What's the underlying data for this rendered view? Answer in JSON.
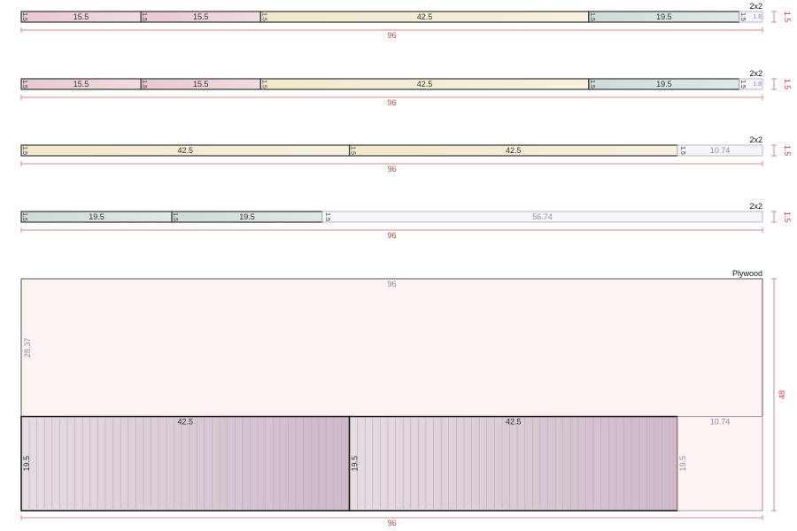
{
  "stock_length": "96",
  "boards": [
    {
      "material": "2x2",
      "thickness": "1.5",
      "length": "96",
      "pieces": [
        {
          "label": "15.5",
          "thickness": "1.5",
          "color": "#e8c9cf"
        },
        {
          "label": "15.5",
          "thickness": "1.5",
          "color": "#e8c9cf"
        },
        {
          "label": "42.5",
          "thickness": "1.5",
          "color": "#f1e9cc"
        },
        {
          "label": "19.5",
          "thickness": "1.5",
          "color": "#cfdcd6"
        }
      ],
      "offcut": {
        "label": "1.8",
        "thickness": "1.5"
      }
    },
    {
      "material": "2x2",
      "thickness": "1.5",
      "length": "96",
      "pieces": [
        {
          "label": "15.5",
          "thickness": "1.5",
          "color": "#e8c9cf"
        },
        {
          "label": "15.5",
          "thickness": "1.5",
          "color": "#e8c9cf"
        },
        {
          "label": "42.5",
          "thickness": "1.5",
          "color": "#f1e9cc"
        },
        {
          "label": "19.5",
          "thickness": "1.5",
          "color": "#cfdcd6"
        }
      ],
      "offcut": {
        "label": "1.8",
        "thickness": "1.5"
      }
    },
    {
      "material": "2x2",
      "thickness": "1.5",
      "length": "96",
      "pieces": [
        {
          "label": "42.5",
          "thickness": "1.5",
          "color": "#f1e9cc"
        },
        {
          "label": "42.5",
          "thickness": "1.5",
          "color": "#f1e9cc"
        }
      ],
      "offcut": {
        "label": "10.74",
        "thickness": "1.5"
      }
    },
    {
      "material": "2x2",
      "thickness": "1.5",
      "length": "96",
      "pieces": [
        {
          "label": "19.5",
          "thickness": "1.5",
          "color": "#cfdcd6"
        },
        {
          "label": "19.5",
          "thickness": "1.5",
          "color": "#cfdcd6"
        }
      ],
      "offcut": {
        "label": "56.74",
        "thickness": "1.5"
      }
    }
  ],
  "plywood": {
    "material": "Plywood",
    "width": "96",
    "height": "48",
    "offcut_top": {
      "width": "96",
      "height": "28.37"
    },
    "pieces": [
      {
        "width": "42.5",
        "height": "19.5"
      },
      {
        "width": "42.5",
        "height": "19.5"
      }
    ],
    "offcut_right": {
      "width": "10.74",
      "height": "19.5"
    },
    "colors": {
      "piece": "#e6dce5",
      "piece_dark": "#cdb9c9",
      "offcut": "#fdf3f3",
      "grain": "#b9aab6"
    }
  },
  "colors": {
    "dimension": "#d88888",
    "offcut_board": "#f6f6fa",
    "outline": "#333333"
  }
}
